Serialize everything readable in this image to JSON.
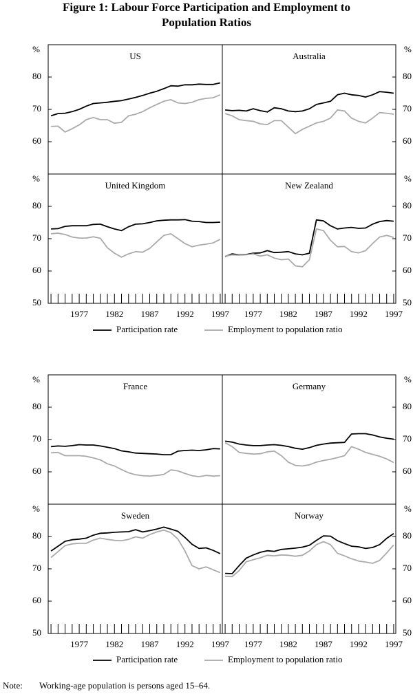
{
  "title": "Figure 1: Labour Force Participation and Employment to Population Ratios",
  "note": {
    "label": "Note:",
    "text": "Working-age population is persons aged 15–64."
  },
  "chart_data": [
    {
      "type": "line",
      "title": "US",
      "ylabel": "%",
      "y_axis_side": "left",
      "xlim": [
        1972.6,
        1997.3
      ],
      "ylim": [
        50,
        90
      ],
      "yticks": [
        60,
        70,
        80
      ],
      "x": [
        1973,
        1974,
        1975,
        1976,
        1977,
        1978,
        1979,
        1980,
        1981,
        1982,
        1983,
        1984,
        1985,
        1986,
        1987,
        1988,
        1989,
        1990,
        1991,
        1992,
        1993,
        1994,
        1995,
        1996,
        1997
      ],
      "series": [
        {
          "name": "Participation rate",
          "color": "#000000",
          "values": [
            68,
            68.7,
            68.8,
            69.3,
            70,
            71,
            71.8,
            72,
            72.2,
            72.5,
            72.7,
            73.2,
            73.7,
            74.3,
            75,
            75.6,
            76.4,
            77.3,
            77.2,
            77.6,
            77.6,
            77.8,
            77.7,
            77.7,
            78.2
          ]
        },
        {
          "name": "Employment to population ratio",
          "color": "#aaaaaa",
          "values": [
            64.7,
            64.8,
            63,
            64,
            65.2,
            66.8,
            67.5,
            66.8,
            66.8,
            65.7,
            66,
            68,
            68.5,
            69.3,
            70.5,
            71.5,
            72.5,
            73,
            72,
            71.8,
            72.2,
            73,
            73.4,
            73.6,
            74.5
          ]
        }
      ]
    },
    {
      "type": "line",
      "title": "Australia",
      "ylabel": "%",
      "y_axis_side": "right",
      "xlim": [
        1972.6,
        1997.3
      ],
      "ylim": [
        50,
        90
      ],
      "yticks": [
        60,
        70,
        80
      ],
      "x": [
        1973,
        1974,
        1975,
        1976,
        1977,
        1978,
        1979,
        1980,
        1981,
        1982,
        1983,
        1984,
        1985,
        1986,
        1987,
        1988,
        1989,
        1990,
        1991,
        1992,
        1993,
        1994,
        1995,
        1996,
        1997
      ],
      "series": [
        {
          "name": "Participation rate",
          "color": "#000000",
          "values": [
            69.8,
            69.6,
            69.7,
            69.5,
            70.2,
            69.6,
            69.2,
            70.5,
            70.2,
            69.5,
            69.3,
            69.5,
            70.2,
            71.5,
            72,
            72.5,
            74.5,
            75,
            74.5,
            74.3,
            73.8,
            74.5,
            75.5,
            75.3,
            75
          ]
        },
        {
          "name": "Employment to population ratio",
          "color": "#aaaaaa",
          "values": [
            68.7,
            68,
            66.8,
            66.5,
            66.3,
            65.5,
            65.3,
            66.5,
            66.5,
            64.5,
            62.5,
            63.8,
            64.8,
            65.8,
            66.3,
            67.3,
            69.8,
            69.5,
            67.3,
            66.3,
            65.8,
            67.3,
            69,
            68.8,
            68.5
          ]
        }
      ]
    },
    {
      "type": "line",
      "title": "United Kingdom",
      "ylabel": "%",
      "y_axis_side": "left",
      "xlim": [
        1972.6,
        1997.3
      ],
      "ylim": [
        50,
        90
      ],
      "yticks": [
        50,
        60,
        70,
        80
      ],
      "xticks": [
        1977,
        1982,
        1987,
        1992,
        1997
      ],
      "x": [
        1973,
        1974,
        1975,
        1976,
        1977,
        1978,
        1979,
        1980,
        1981,
        1982,
        1983,
        1984,
        1985,
        1986,
        1987,
        1988,
        1989,
        1990,
        1991,
        1992,
        1993,
        1994,
        1995,
        1996,
        1997
      ],
      "series": [
        {
          "name": "Participation rate",
          "color": "#000000",
          "values": [
            73,
            73.1,
            73.8,
            74,
            74,
            74,
            74.4,
            74.5,
            73.7,
            73,
            72.5,
            73.7,
            74.5,
            74.6,
            75,
            75.5,
            75.7,
            75.8,
            75.8,
            75.9,
            75.4,
            75.3,
            75,
            75,
            75.1
          ]
        },
        {
          "name": "Employment to population ratio",
          "color": "#aaaaaa",
          "values": [
            71.5,
            71.7,
            71.3,
            70.5,
            70.2,
            70.2,
            70.6,
            70.1,
            67.2,
            65.5,
            64.3,
            65.3,
            66,
            65.8,
            67,
            69,
            71,
            71.5,
            70,
            68.5,
            67.5,
            68,
            68.3,
            68.7,
            69.8
          ]
        }
      ]
    },
    {
      "type": "line",
      "title": "New Zealand",
      "ylabel": "%",
      "y_axis_side": "right",
      "xlim": [
        1972.6,
        1997.3
      ],
      "ylim": [
        50,
        90
      ],
      "yticks": [
        50,
        60,
        70,
        80
      ],
      "xticks": [
        1977,
        1982,
        1987,
        1992,
        1997
      ],
      "x": [
        1973,
        1974,
        1975,
        1976,
        1977,
        1978,
        1979,
        1980,
        1981,
        1982,
        1983,
        1984,
        1985,
        1986,
        1987,
        1988,
        1989,
        1990,
        1991,
        1992,
        1993,
        1994,
        1995,
        1996,
        1997
      ],
      "series": [
        {
          "name": "Participation rate",
          "color": "#000000",
          "values": [
            64.5,
            65.3,
            65,
            65.1,
            65.5,
            65.6,
            66.3,
            65.7,
            65.8,
            66,
            65.3,
            65,
            65.5,
            75.8,
            75.5,
            74,
            73,
            73.3,
            73.5,
            73.2,
            73.3,
            74.5,
            75.3,
            75.6,
            75.4
          ]
        },
        {
          "name": "Employment to population ratio",
          "color": "#aaaaaa",
          "values": [
            64.6,
            65,
            64.9,
            65,
            65.3,
            64.6,
            65,
            64,
            63.5,
            63.7,
            61.6,
            61.3,
            63.5,
            73,
            72.5,
            69.5,
            67.5,
            67.6,
            66,
            65.6,
            66.3,
            68.5,
            70.5,
            71,
            70.4
          ]
        }
      ]
    },
    {
      "type": "line",
      "title": "France",
      "ylabel": "%",
      "y_axis_side": "left",
      "xlim": [
        1972.6,
        1997.3
      ],
      "ylim": [
        50,
        90
      ],
      "yticks": [
        60,
        70,
        80
      ],
      "x": [
        1973,
        1974,
        1975,
        1976,
        1977,
        1978,
        1979,
        1980,
        1981,
        1982,
        1983,
        1984,
        1985,
        1986,
        1987,
        1988,
        1989,
        1990,
        1991,
        1992,
        1993,
        1994,
        1995,
        1996,
        1997
      ],
      "series": [
        {
          "name": "Participation rate",
          "color": "#000000",
          "values": [
            67.8,
            68,
            67.9,
            68.1,
            68.4,
            68.3,
            68.3,
            68,
            67.6,
            67.2,
            66.5,
            66.2,
            65.8,
            65.7,
            65.6,
            65.5,
            65.3,
            65.3,
            66.4,
            66.6,
            66.7,
            66.6,
            66.8,
            67.2,
            67.1
          ]
        },
        {
          "name": "Employment to population ratio",
          "color": "#aaaaaa",
          "values": [
            65.9,
            66,
            65,
            65,
            65,
            64.8,
            64.3,
            63.7,
            62.5,
            61.8,
            60.7,
            59.7,
            59.1,
            58.8,
            58.7,
            58.9,
            59.2,
            60.6,
            60.3,
            59.5,
            58.8,
            58.5,
            58.9,
            58.7,
            58.8
          ]
        }
      ]
    },
    {
      "type": "line",
      "title": "Germany",
      "ylabel": "%",
      "y_axis_side": "right",
      "xlim": [
        1972.6,
        1997.3
      ],
      "ylim": [
        50,
        90
      ],
      "yticks": [
        60,
        70,
        80
      ],
      "x": [
        1973,
        1974,
        1975,
        1976,
        1977,
        1978,
        1979,
        1980,
        1981,
        1982,
        1983,
        1984,
        1985,
        1986,
        1987,
        1988,
        1989,
        1990,
        1991,
        1992,
        1993,
        1994,
        1995,
        1996,
        1997
      ],
      "series": [
        {
          "name": "Participation rate",
          "color": "#000000",
          "values": [
            69.5,
            69.2,
            68.6,
            68.3,
            68.1,
            68.1,
            68.3,
            68.4,
            68.2,
            67.8,
            67.3,
            67,
            67.5,
            68.2,
            68.6,
            68.9,
            69,
            69.1,
            71.7,
            71.8,
            71.8,
            71.4,
            70.8,
            70.4,
            70.1
          ]
        },
        {
          "name": "Employment to population ratio",
          "color": "#aaaaaa",
          "values": [
            69,
            67.8,
            66,
            65.7,
            65.5,
            65.6,
            66.2,
            66.4,
            65,
            63,
            62,
            61.8,
            62.2,
            63,
            63.5,
            63.9,
            64.4,
            65,
            67.8,
            67,
            66,
            65.4,
            64.8,
            64,
            62.9
          ]
        }
      ]
    },
    {
      "type": "line",
      "title": "Sweden",
      "ylabel": "%",
      "y_axis_side": "left",
      "xlim": [
        1972.6,
        1997.3
      ],
      "ylim": [
        50,
        90
      ],
      "yticks": [
        50,
        60,
        70,
        80
      ],
      "xticks": [
        1977,
        1982,
        1987,
        1992,
        1997
      ],
      "x": [
        1973,
        1974,
        1975,
        1976,
        1977,
        1978,
        1979,
        1980,
        1981,
        1982,
        1983,
        1984,
        1985,
        1986,
        1987,
        1988,
        1989,
        1990,
        1991,
        1992,
        1993,
        1994,
        1995,
        1996,
        1997
      ],
      "series": [
        {
          "name": "Participation rate",
          "color": "#000000",
          "values": [
            75.5,
            77,
            78.5,
            79,
            79.2,
            79.5,
            80.4,
            81,
            81.1,
            81.3,
            81.4,
            81.5,
            82.1,
            81.4,
            81.8,
            82.3,
            82.9,
            82.3,
            81.6,
            79.7,
            77.6,
            76.3,
            76.5,
            75.7,
            74.7
          ]
        },
        {
          "name": "Employment to population ratio",
          "color": "#aaaaaa",
          "values": [
            73.5,
            75.3,
            77.2,
            77.7,
            77.9,
            77.9,
            78.9,
            79.5,
            79.1,
            78.8,
            78.7,
            79.1,
            79.9,
            79.5,
            80.6,
            81.4,
            82,
            81.2,
            79.2,
            75.5,
            71,
            70,
            70.6,
            69.7,
            68.8
          ]
        }
      ]
    },
    {
      "type": "line",
      "title": "Norway",
      "ylabel": "%",
      "y_axis_side": "right",
      "xlim": [
        1972.6,
        1997.3
      ],
      "ylim": [
        50,
        90
      ],
      "yticks": [
        50,
        60,
        70,
        80
      ],
      "xticks": [
        1977,
        1982,
        1987,
        1992,
        1997
      ],
      "x": [
        1973,
        1974,
        1975,
        1976,
        1977,
        1978,
        1979,
        1980,
        1981,
        1982,
        1983,
        1984,
        1985,
        1986,
        1987,
        1988,
        1989,
        1990,
        1991,
        1992,
        1993,
        1994,
        1995,
        1996,
        1997
      ],
      "series": [
        {
          "name": "Participation rate",
          "color": "#000000",
          "values": [
            68.6,
            68.5,
            71,
            73.3,
            74.3,
            75.1,
            75.6,
            75.4,
            76,
            76.2,
            76.4,
            76.7,
            77.3,
            78.8,
            80.2,
            80.1,
            78.7,
            77.8,
            77,
            76.8,
            76.3,
            76.6,
            77.5,
            79.4,
            80.9
          ]
        },
        {
          "name": "Employment to population ratio",
          "color": "#aaaaaa",
          "values": [
            67.7,
            67.6,
            69.5,
            72.2,
            72.8,
            73.4,
            74.2,
            74,
            74.3,
            74.2,
            73.9,
            74.2,
            75.5,
            77.5,
            78.4,
            77.5,
            74.8,
            74,
            73.1,
            72.4,
            72.1,
            71.7,
            72.6,
            74.9,
            77.4
          ]
        }
      ]
    }
  ]
}
